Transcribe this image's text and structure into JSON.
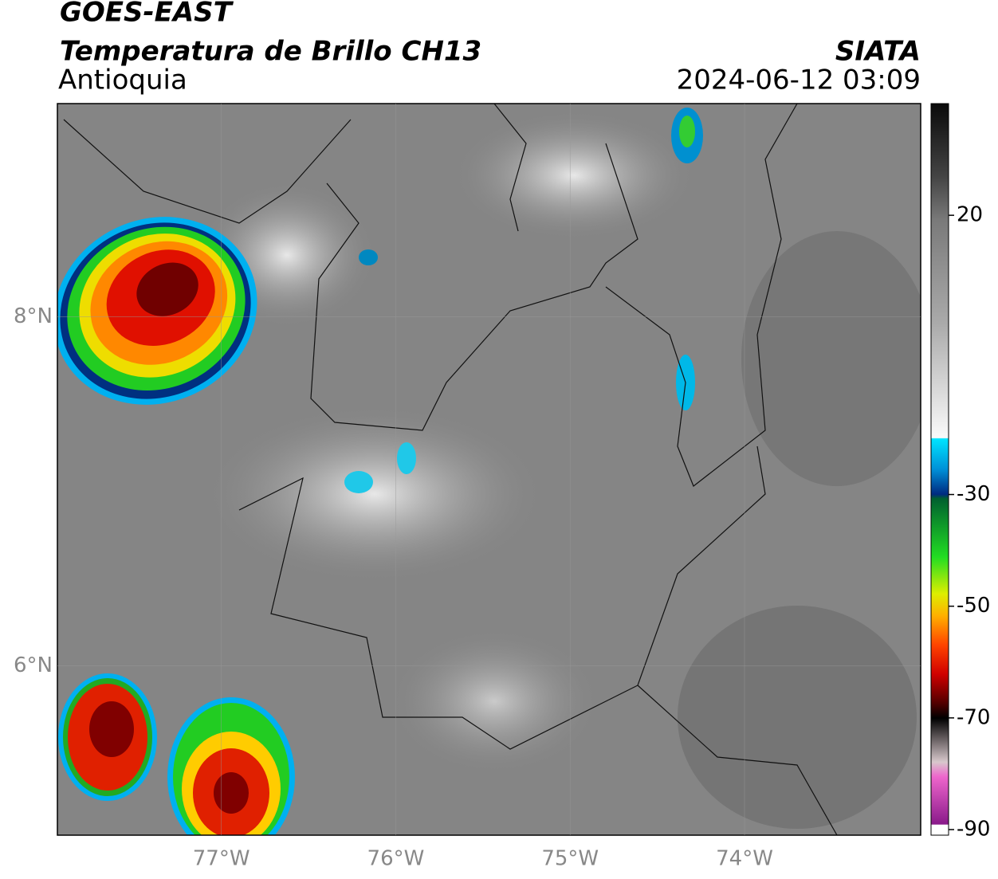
{
  "header": {
    "title": "GOES-EAST",
    "subtitle": "Temperatura de Brillo CH13",
    "region": "Antioquia",
    "source": "SIATA",
    "timestamp": "2024-06-12 03:09"
  },
  "map": {
    "xlim": [
      -77.94,
      -72.99
    ],
    "ylim": [
      5.03,
      9.22
    ],
    "xticks": [
      {
        "value": -77,
        "label": "77°W"
      },
      {
        "value": -76,
        "label": "76°W"
      },
      {
        "value": -75,
        "label": "75°W"
      },
      {
        "value": -74,
        "label": "74°W"
      }
    ],
    "yticks": [
      {
        "value": 8,
        "label": "8°N"
      },
      {
        "value": 6,
        "label": "6°N"
      }
    ]
  },
  "colorbar": {
    "ylim": [
      -91,
      40
    ],
    "yticks": [
      20,
      -30,
      -50,
      -70,
      -90
    ]
  }
}
